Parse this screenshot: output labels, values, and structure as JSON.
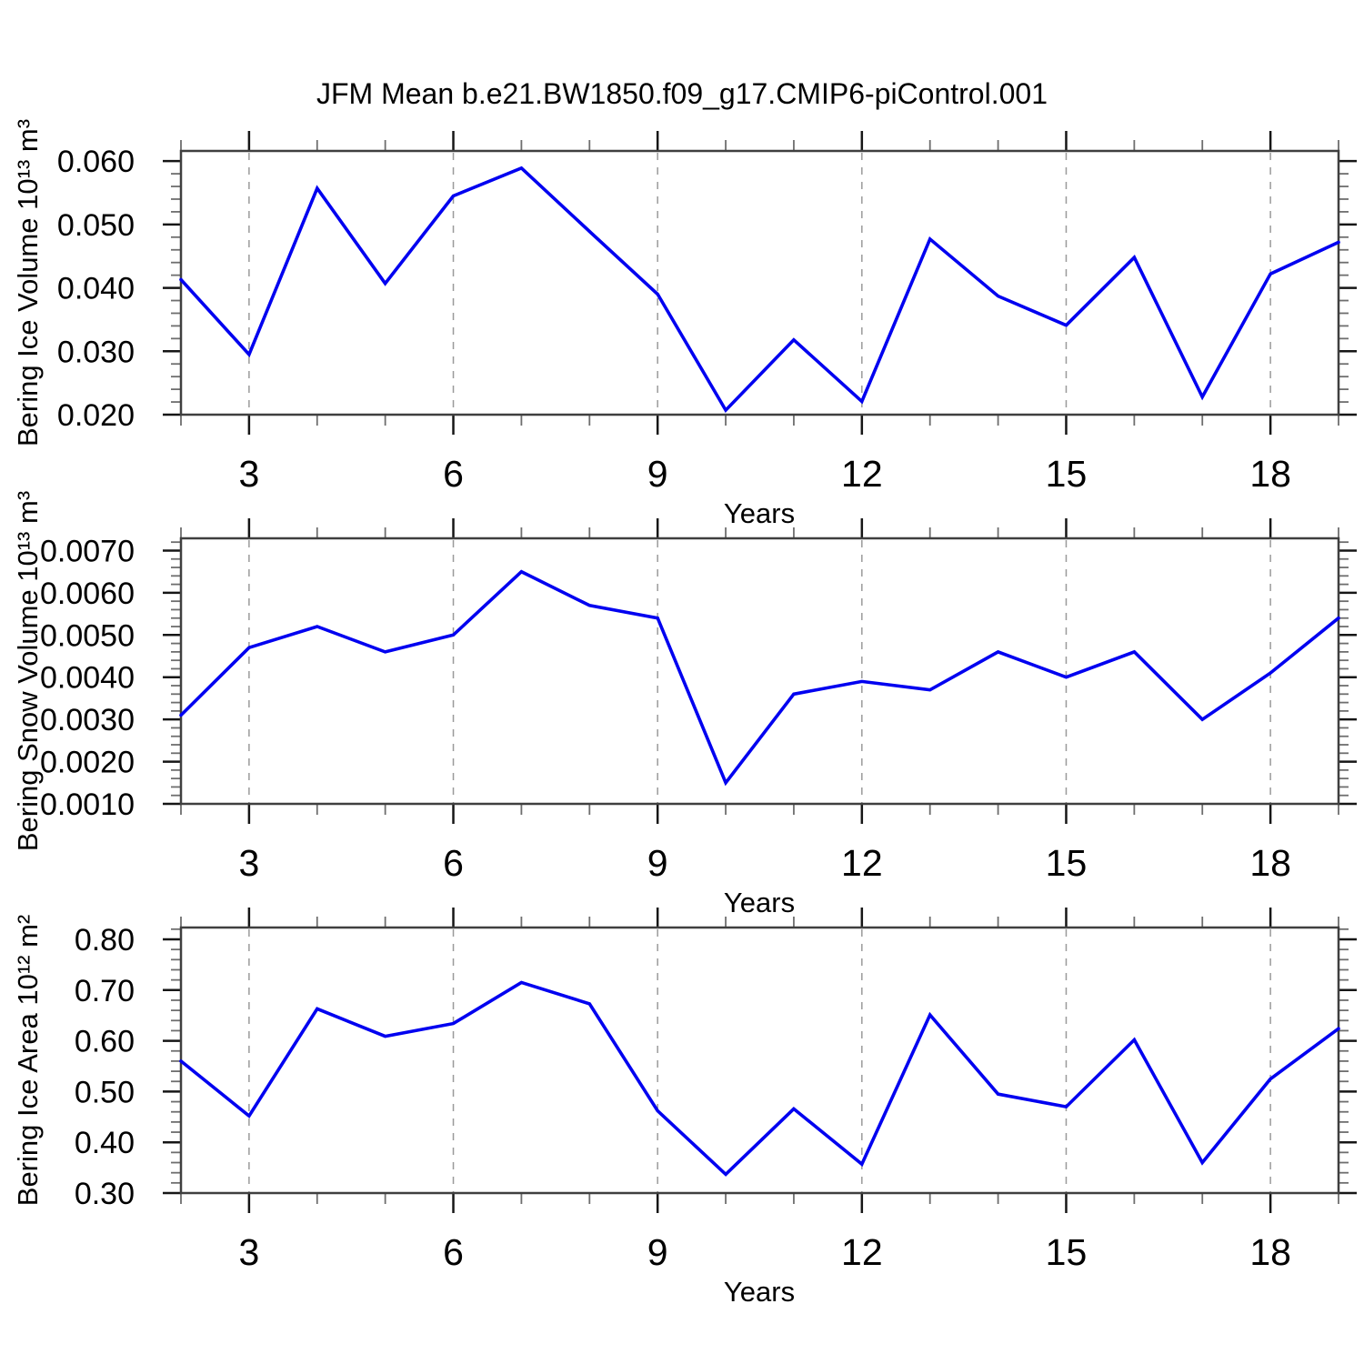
{
  "title": "JFM Mean b.e21.BW1850.f09_g17.CMIP6-piControl.001",
  "colors": {
    "line": "#0000f0",
    "axis": "#3f3f3f",
    "major_tick": "#161616",
    "minor_tick": "#6e6e6e",
    "gridline": "#9a9a9a",
    "text": "#000000",
    "background": "#ffffff"
  },
  "chart_data": [
    {
      "type": "line",
      "panel": "bering-ice-volume",
      "ylabel": "Bering Ice Volume 10¹³ m³",
      "xlabel": "Years",
      "x": [
        2,
        3,
        4,
        5,
        6,
        7,
        8,
        9,
        10,
        11,
        12,
        13,
        14,
        15,
        16,
        17,
        18,
        19
      ],
      "values": [
        0.0413,
        0.0295,
        0.0557,
        0.0407,
        0.0545,
        0.0589,
        0.0489,
        0.039,
        0.0207,
        0.0318,
        0.0221,
        0.0477,
        0.0387,
        0.0341,
        0.0448,
        0.0228,
        0.0422,
        0.0472
      ],
      "xlim": [
        2,
        19
      ],
      "ylim": [
        0.02,
        0.0616
      ],
      "xticks": [
        3,
        6,
        9,
        12,
        15,
        18
      ],
      "xtick_labels": [
        "3",
        "6",
        "9",
        "12",
        "15",
        "18"
      ],
      "x_minor_step": 1,
      "yticks": [
        0.02,
        0.03,
        0.04,
        0.05,
        0.06
      ],
      "ytick_labels": [
        "0.020",
        "0.030",
        "0.040",
        "0.050",
        "0.060"
      ],
      "y_minor_step": 0.002,
      "grid": "vertical-dashed-at-major-xticks",
      "legend": "none"
    },
    {
      "type": "line",
      "panel": "bering-snow-volume",
      "ylabel": "Bering Snow Volume 10¹³ m³",
      "xlabel": "Years",
      "x": [
        2,
        3,
        4,
        5,
        6,
        7,
        8,
        9,
        10,
        11,
        12,
        13,
        14,
        15,
        16,
        17,
        18,
        19
      ],
      "values": [
        0.0031,
        0.0047,
        0.0052,
        0.0046,
        0.005,
        0.0065,
        0.0057,
        0.0054,
        0.0015,
        0.0036,
        0.0039,
        0.0037,
        0.0046,
        0.004,
        0.0046,
        0.003,
        0.0041,
        0.0054
      ],
      "xlim": [
        2,
        19
      ],
      "ylim": [
        0.001,
        0.00729
      ],
      "xticks": [
        3,
        6,
        9,
        12,
        15,
        18
      ],
      "xtick_labels": [
        "3",
        "6",
        "9",
        "12",
        "15",
        "18"
      ],
      "x_minor_step": 1,
      "yticks": [
        0.001,
        0.002,
        0.003,
        0.004,
        0.005,
        0.006,
        0.007
      ],
      "ytick_labels": [
        "0.0010",
        "0.0020",
        "0.0030",
        "0.0040",
        "0.0050",
        "0.0060",
        "0.0070"
      ],
      "y_minor_step": 0.0002,
      "grid": "vertical-dashed-at-major-xticks",
      "legend": "none"
    },
    {
      "type": "line",
      "panel": "bering-ice-area",
      "ylabel": "Bering Ice Area 10¹² m²",
      "xlabel": "Years",
      "x": [
        2,
        3,
        4,
        5,
        6,
        7,
        8,
        9,
        10,
        11,
        12,
        13,
        14,
        15,
        16,
        17,
        18,
        19
      ],
      "values": [
        0.56,
        0.452,
        0.663,
        0.609,
        0.634,
        0.715,
        0.673,
        0.462,
        0.337,
        0.466,
        0.357,
        0.651,
        0.495,
        0.47,
        0.602,
        0.36,
        0.525,
        0.624
      ],
      "xlim": [
        2,
        19
      ],
      "ylim": [
        0.3,
        0.8233
      ],
      "xticks": [
        3,
        6,
        9,
        12,
        15,
        18
      ],
      "xtick_labels": [
        "3",
        "6",
        "9",
        "12",
        "15",
        "18"
      ],
      "x_minor_step": 1,
      "yticks": [
        0.3,
        0.4,
        0.5,
        0.6,
        0.7,
        0.8
      ],
      "ytick_labels": [
        "0.30",
        "0.40",
        "0.50",
        "0.60",
        "0.70",
        "0.80"
      ],
      "y_minor_step": 0.02,
      "grid": "vertical-dashed-at-major-xticks",
      "legend": "none"
    }
  ]
}
